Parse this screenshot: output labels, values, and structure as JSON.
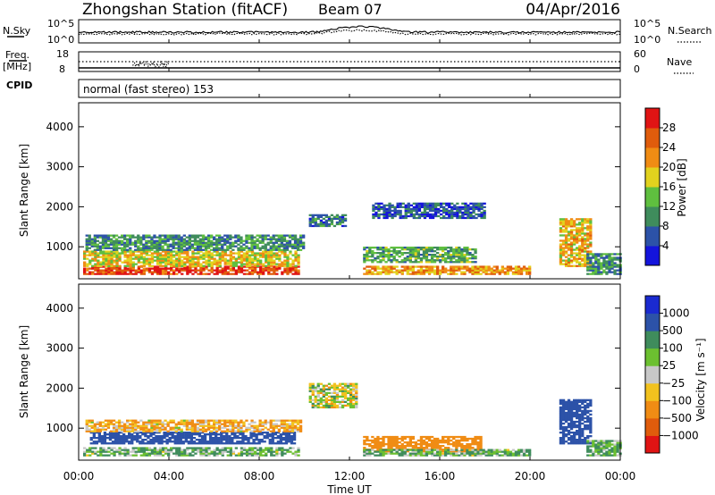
{
  "header": {
    "station": "Zhongshan Station (fitACF)",
    "beam": "Beam 07",
    "date": "04/Apr/2016"
  },
  "noise_panel": {
    "left_label": "N.Sky",
    "left_ticks": [
      "10^5",
      "10^0"
    ],
    "right_label": "N.Search",
    "right_ticks": [
      "10^5",
      "10^0"
    ]
  },
  "freq_panel": {
    "left_label": "Freq.",
    "left_unit": "[MHz]",
    "left_ticks": [
      "18",
      "8"
    ],
    "right_label": "Nave",
    "right_ticks": [
      "60",
      "0"
    ]
  },
  "cpid": {
    "label": "CPID",
    "value": "normal (fast stereo) 153"
  },
  "power_panel": {
    "ylabel": "Slant Range [km]",
    "yticks": [
      "1000",
      "2000",
      "3000",
      "4000"
    ],
    "colorbar_label": "Power [dB]",
    "colorbar_ticks": [
      "4",
      "8",
      "12",
      "16",
      "20",
      "24",
      "28"
    ],
    "colorbar_colors": [
      "#1414dc",
      "#2c52a8",
      "#3f8c5c",
      "#5fbf3f",
      "#e2d21e",
      "#f08c14",
      "#e05c0c",
      "#e01414"
    ]
  },
  "velocity_panel": {
    "ylabel": "Slant Range [km]",
    "yticks": [
      "1000",
      "2000",
      "3000",
      "4000"
    ],
    "colorbar_label": "Velocity [m s⁻¹]",
    "colorbar_ticks": [
      "1000",
      "500",
      "100",
      "25",
      "−25",
      "−100",
      "−500",
      "−1000"
    ],
    "colorbar_colors": [
      "#1a2ad0",
      "#2c52a8",
      "#3f8c5c",
      "#6cc030",
      "#c8c8c8",
      "#f2c21e",
      "#f08c14",
      "#e05c0c",
      "#e01414"
    ]
  },
  "xaxis": {
    "label": "Time UT",
    "ticks": [
      "00:00",
      "04:00",
      "08:00",
      "12:00",
      "16:00",
      "20:00",
      "00:00"
    ]
  },
  "chart_data": [
    {
      "type": "heatmap",
      "title": "Zhongshan Station (fitACF) Beam 07 04/Apr/2016",
      "xlabel": "Time UT",
      "ylabel": "Slant Range [km]",
      "xlim": [
        0,
        24
      ],
      "ylim": [
        200,
        4600
      ],
      "colorbar": "Power [dB]",
      "color_range": [
        0,
        32
      ],
      "regions": [
        {
          "t": [
            0.2,
            9.7
          ],
          "range_km": [
            300,
            500
          ],
          "power_db": 28
        },
        {
          "t": [
            0.2,
            9.7
          ],
          "range_km": [
            500,
            900
          ],
          "power_db": 18
        },
        {
          "t": [
            0.3,
            10.0
          ],
          "range_km": [
            900,
            1300
          ],
          "power_db": 10
        },
        {
          "t": [
            10.2,
            11.8
          ],
          "range_km": [
            1500,
            1800
          ],
          "power_db": 8
        },
        {
          "t": [
            12.6,
            20.0
          ],
          "range_km": [
            300,
            500
          ],
          "power_db": 22
        },
        {
          "t": [
            12.6,
            17.6
          ],
          "range_km": [
            600,
            1000
          ],
          "power_db": 12
        },
        {
          "t": [
            13.0,
            18.0
          ],
          "range_km": [
            1700,
            2100
          ],
          "power_db": 6
        },
        {
          "t": [
            21.3,
            22.7
          ],
          "range_km": [
            500,
            1700
          ],
          "power_db": 20
        },
        {
          "t": [
            22.5,
            24.0
          ],
          "range_km": [
            300,
            800
          ],
          "power_db": 10
        }
      ]
    },
    {
      "type": "heatmap",
      "title": "Zhongshan Station (fitACF) Beam 07 04/Apr/2016",
      "xlabel": "Time UT",
      "ylabel": "Slant Range [km]",
      "xlim": [
        0,
        24
      ],
      "ylim": [
        200,
        4600
      ],
      "colorbar": "Velocity [m s⁻¹]",
      "color_range": [
        -1000,
        1000
      ],
      "regions": [
        {
          "t": [
            0.2,
            9.7
          ],
          "range_km": [
            300,
            500
          ],
          "velocity": 100
        },
        {
          "t": [
            0.5,
            9.6
          ],
          "range_km": [
            600,
            900
          ],
          "velocity": 700
        },
        {
          "t": [
            0.3,
            9.8
          ],
          "range_km": [
            900,
            1200
          ],
          "velocity": -100
        },
        {
          "t": [
            10.2,
            12.3
          ],
          "range_km": [
            1500,
            2100
          ],
          "velocity": 0
        },
        {
          "t": [
            12.6,
            17.8
          ],
          "range_km": [
            400,
            800
          ],
          "velocity": -300
        },
        {
          "t": [
            12.6,
            20.0
          ],
          "range_km": [
            300,
            450
          ],
          "velocity": 100
        },
        {
          "t": [
            21.3,
            22.7
          ],
          "range_km": [
            600,
            1700
          ],
          "velocity": 800
        },
        {
          "t": [
            22.5,
            24.0
          ],
          "range_km": [
            300,
            700
          ],
          "velocity": 100
        }
      ]
    }
  ]
}
